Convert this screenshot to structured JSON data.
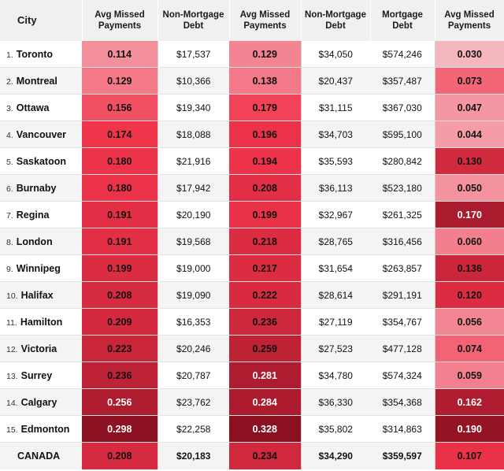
{
  "headers": {
    "city": "City",
    "m1": "Avg Missed Payments",
    "nm1": "Non-Mortgage Debt",
    "m2": "Avg Missed Payments",
    "nm2": "Non-Mortgage Debt",
    "mort": "Mortgage Debt",
    "m3": "Avg Missed Payments"
  },
  "rows": [
    {
      "rank": "1.",
      "city": "Toronto",
      "m1": "0.114",
      "nm1": "$17,537",
      "m2": "0.129",
      "nm2": "$34,050",
      "mort": "$574,246",
      "m3": "0.030"
    },
    {
      "rank": "2.",
      "city": "Montreal",
      "m1": "0.129",
      "nm1": "$10,366",
      "m2": "0.138",
      "nm2": "$20,437",
      "mort": "$357,487",
      "m3": "0.073"
    },
    {
      "rank": "3.",
      "city": "Ottawa",
      "m1": "0.156",
      "nm1": "$19,340",
      "m2": "0.179",
      "nm2": "$31,115",
      "mort": "$367,030",
      "m3": "0.047"
    },
    {
      "rank": "4.",
      "city": "Vancouver",
      "m1": "0.174",
      "nm1": "$18,088",
      "m2": "0.196",
      "nm2": "$34,703",
      "mort": "$595,100",
      "m3": "0.044"
    },
    {
      "rank": "5.",
      "city": "Saskatoon",
      "m1": "0.180",
      "nm1": "$21,916",
      "m2": "0.194",
      "nm2": "$35,593",
      "mort": "$280,842",
      "m3": "0.130"
    },
    {
      "rank": "6.",
      "city": "Burnaby",
      "m1": "0.180",
      "nm1": "$17,942",
      "m2": "0.208",
      "nm2": "$36,113",
      "mort": "$523,180",
      "m3": "0.050"
    },
    {
      "rank": "7.",
      "city": "Regina",
      "m1": "0.191",
      "nm1": "$20,190",
      "m2": "0.199",
      "nm2": "$32,967",
      "mort": "$261,325",
      "m3": "0.170"
    },
    {
      "rank": "8.",
      "city": "London",
      "m1": "0.191",
      "nm1": "$19,568",
      "m2": "0.218",
      "nm2": "$28,765",
      "mort": "$316,456",
      "m3": "0.060"
    },
    {
      "rank": "9.",
      "city": "Winnipeg",
      "m1": "0.199",
      "nm1": "$19,000",
      "m2": "0.217",
      "nm2": "$31,654",
      "mort": "$263,857",
      "m3": "0.136"
    },
    {
      "rank": "10.",
      "city": "Halifax",
      "m1": "0.208",
      "nm1": "$19,090",
      "m2": "0.222",
      "nm2": "$28,614",
      "mort": "$291,191",
      "m3": "0.120"
    },
    {
      "rank": "11.",
      "city": "Hamilton",
      "m1": "0.209",
      "nm1": "$16,353",
      "m2": "0.236",
      "nm2": "$27,119",
      "mort": "$354,767",
      "m3": "0.056"
    },
    {
      "rank": "12.",
      "city": "Victoria",
      "m1": "0.223",
      "nm1": "$20,246",
      "m2": "0.259",
      "nm2": "$27,523",
      "mort": "$477,128",
      "m3": "0.074"
    },
    {
      "rank": "13.",
      "city": "Surrey",
      "m1": "0.236",
      "nm1": "$20,787",
      "m2": "0.281",
      "nm2": "$34,780",
      "mort": "$574,324",
      "m3": "0.059"
    },
    {
      "rank": "14.",
      "city": "Calgary",
      "m1": "0.256",
      "nm1": "$23,762",
      "m2": "0.284",
      "nm2": "$36,330",
      "mort": "$354,368",
      "m3": "0.162"
    },
    {
      "rank": "15.",
      "city": "Edmonton",
      "m1": "0.298",
      "nm1": "$22,258",
      "m2": "0.328",
      "nm2": "$35,802",
      "mort": "$314,863",
      "m3": "0.190"
    }
  ],
  "total": {
    "city": "CANADA",
    "m1": "0.208",
    "nm1": "$20,183",
    "m2": "0.234",
    "nm2": "$34,290",
    "mort": "$359,597",
    "m3": "0.107"
  },
  "colors": {
    "low_light": "#f7f0f0",
    "mid_red": "#f0334a",
    "dark_red": "#8a1020"
  }
}
